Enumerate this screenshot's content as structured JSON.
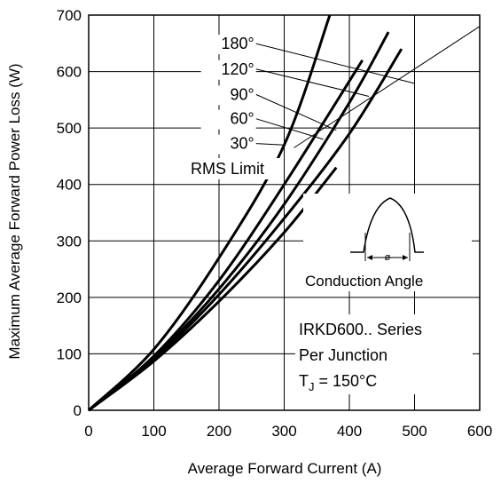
{
  "chart_data": {
    "type": "line",
    "title": "",
    "xlabel": "Average Forward Current (A)",
    "ylabel": "Maximum Average Forward Power Loss (W)",
    "xlim": [
      0,
      600
    ],
    "ylim": [
      0,
      700
    ],
    "x_ticks": [
      "0",
      "100",
      "200",
      "300",
      "400",
      "500",
      "600"
    ],
    "y_ticks": [
      "0",
      "100",
      "200",
      "300",
      "400",
      "500",
      "600",
      "700"
    ],
    "grid": true,
    "series": [
      {
        "name": "180°",
        "x": [
          0,
          100,
          200,
          300,
          380
        ],
        "y": [
          0,
          87,
          193,
          315,
          430
        ]
      },
      {
        "name": "120°",
        "x": [
          0,
          100,
          200,
          300,
          400,
          480
        ],
        "y": [
          0,
          90,
          205,
          340,
          490,
          640
        ]
      },
      {
        "name": "90°",
        "x": [
          0,
          100,
          200,
          300,
          400,
          460
        ],
        "y": [
          0,
          93,
          215,
          365,
          545,
          670
        ]
      },
      {
        "name": "60°",
        "x": [
          0,
          100,
          200,
          300,
          420
        ],
        "y": [
          0,
          96,
          230,
          400,
          620
        ]
      },
      {
        "name": "30°",
        "x": [
          0,
          100,
          200,
          300,
          370
        ],
        "y": [
          0,
          108,
          270,
          470,
          700
        ]
      }
    ],
    "rms_limit": {
      "label": "RMS Limit",
      "x": [
        315,
        600
      ],
      "y": [
        465,
        680
      ]
    },
    "series_labels": [
      "180°",
      "120°",
      "90°",
      "60°",
      "30°"
    ],
    "annotation_lines": [
      {
        "label": "180°",
        "text_x": 262,
        "text_y": 640,
        "to_x": 500,
        "to_y": 579
      },
      {
        "label": "120°",
        "text_x": 262,
        "text_y": 595,
        "to_x": 430,
        "to_y": 556
      },
      {
        "label": "90°",
        "text_x": 262,
        "text_y": 550,
        "to_x": 380,
        "to_y": 496
      },
      {
        "label": "60°",
        "text_x": 262,
        "text_y": 507,
        "to_x": 360,
        "to_y": 480
      },
      {
        "label": "30°",
        "text_x": 262,
        "text_y": 463,
        "to_x": 300,
        "to_y": 470
      }
    ],
    "rms_limit_label": "RMS Limit",
    "conduction_label": "Conduction Angle",
    "conduction_symbol": "ø",
    "series_info_lines": [
      "IRKD600.. Series",
      "Per Junction"
    ],
    "tj_prefix": "T",
    "tj_subscript": "J",
    "tj_suffix": " = 150°C"
  }
}
